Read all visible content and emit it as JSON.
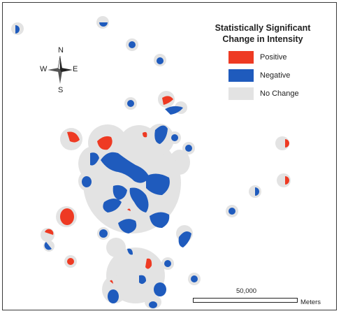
{
  "legend": {
    "title_line1": "Statistically Significant",
    "title_line2": "Change in Intensity",
    "items": [
      {
        "label": "Positive",
        "color": "#ee3a23"
      },
      {
        "label": "Negative",
        "color": "#1f5bbd"
      },
      {
        "label": "No Change",
        "color": "#e3e3e3"
      }
    ]
  },
  "compass": {
    "north": "N",
    "south": "S",
    "east": "E",
    "west": "W"
  },
  "scale_bar": {
    "distance": "50,000",
    "unit": "Meters"
  },
  "colors": {
    "positive": "#ee3a23",
    "negative": "#1f5bbd",
    "no_change": "#e3e3e3",
    "border": "#3a3a3a"
  }
}
